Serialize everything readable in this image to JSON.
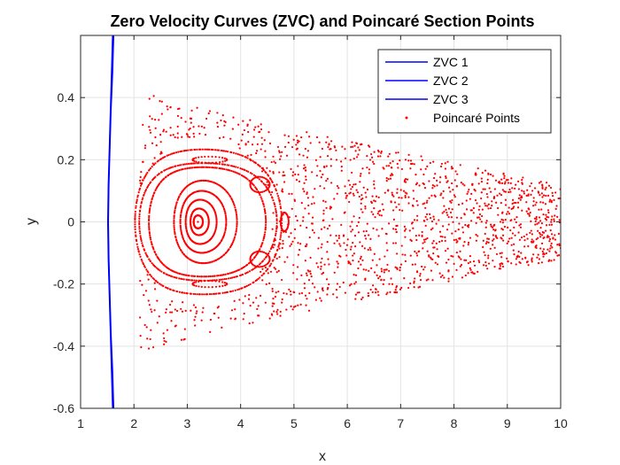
{
  "chart_data": {
    "type": "scatter",
    "title": "Zero Velocity Curves (ZVC) and Poincaré Section Points",
    "xlabel": "x",
    "ylabel": "y",
    "xlim": [
      1,
      10
    ],
    "ylim": [
      -0.6,
      0.6
    ],
    "xticks": [
      1,
      2,
      3,
      4,
      5,
      6,
      7,
      8,
      9,
      10
    ],
    "yticks": [
      -0.6,
      -0.4,
      -0.2,
      0,
      0.2,
      0.4
    ],
    "xtick_labels": [
      "1",
      "2",
      "3",
      "4",
      "5",
      "6",
      "7",
      "8",
      "9",
      "10"
    ],
    "ytick_labels": [
      "-0.6",
      "-0.4",
      "-0.2",
      "0",
      "0.2",
      "0.4"
    ],
    "grid": true,
    "legend_position": "top-right",
    "series": [
      {
        "name": "ZVC 1",
        "kind": "line",
        "color": "#0000ff",
        "x": [
          1.62,
          1.6,
          1.57,
          1.55,
          1.53,
          1.52,
          1.53,
          1.55,
          1.57,
          1.6,
          1.62
        ],
        "y": [
          -0.6,
          -0.48,
          -0.36,
          -0.24,
          -0.12,
          0.0,
          0.12,
          0.24,
          0.36,
          0.48,
          0.6
        ]
      },
      {
        "name": "ZVC 2",
        "kind": "line",
        "color": "#0000ff",
        "x": [
          1.61,
          1.59,
          1.565,
          1.545,
          1.525,
          1.515,
          1.525,
          1.545,
          1.565,
          1.59,
          1.61
        ],
        "y": [
          -0.6,
          -0.48,
          -0.36,
          -0.24,
          -0.12,
          0.0,
          0.12,
          0.24,
          0.36,
          0.48,
          0.6
        ]
      },
      {
        "name": "ZVC 3",
        "kind": "line",
        "color": "#0000ff",
        "x": [
          1.6,
          1.58,
          1.56,
          1.54,
          1.52,
          1.51,
          1.52,
          1.54,
          1.56,
          1.58,
          1.6
        ],
        "y": [
          -0.6,
          -0.48,
          -0.36,
          -0.24,
          -0.12,
          0.0,
          0.12,
          0.24,
          0.36,
          0.48,
          0.6
        ]
      },
      {
        "name": "Poincaré Points",
        "kind": "points",
        "color": "#ff0000",
        "description": "KAM tori around a stable fixed point plus a chaotic sea",
        "fixed_point": [
          3.2,
          0.0
        ],
        "tori": [
          {
            "cx": 3.2,
            "rx": 0.08,
            "ry": 0.022,
            "n": 70
          },
          {
            "cx": 3.22,
            "rx": 0.16,
            "ry": 0.045,
            "n": 90
          },
          {
            "cx": 3.24,
            "rx": 0.27,
            "ry": 0.075,
            "n": 110
          },
          {
            "cx": 3.27,
            "rx": 0.4,
            "ry": 0.105,
            "n": 140
          },
          {
            "cx": 3.3,
            "rx": 0.55,
            "ry": 0.14,
            "n": 160
          }
        ],
        "outer_tori": [
          {
            "cx": 3.3,
            "rx": 1.02,
            "ry": 0.2,
            "n": 240
          },
          {
            "cx": 3.3,
            "rx": 1.2,
            "ry": 0.215,
            "n": 220
          },
          {
            "cx": 3.3,
            "rx": 1.28,
            "ry": 0.265,
            "n": 240
          }
        ],
        "islands": [
          {
            "cx": 4.82,
            "cy": 0.0,
            "rx": 0.07,
            "ry": 0.03,
            "n": 36
          },
          {
            "cx": 4.35,
            "cy": 0.12,
            "rx": 0.17,
            "ry": 0.025,
            "n": 36
          },
          {
            "cx": 4.35,
            "cy": -0.12,
            "rx": 0.17,
            "ry": 0.025,
            "n": 36
          },
          {
            "cx": 3.4,
            "cy": 0.2,
            "rx": 0.3,
            "ry": 0.01,
            "n": 28
          },
          {
            "cx": 3.4,
            "cy": -0.2,
            "rx": 0.3,
            "ry": 0.01,
            "n": 28
          }
        ],
        "chaotic_region": {
          "x_range": [
            2.1,
            10.0
          ],
          "y_halfwidth_left": 0.42,
          "y_halfwidth_right": 0.12,
          "n": 1500
        }
      }
    ]
  }
}
